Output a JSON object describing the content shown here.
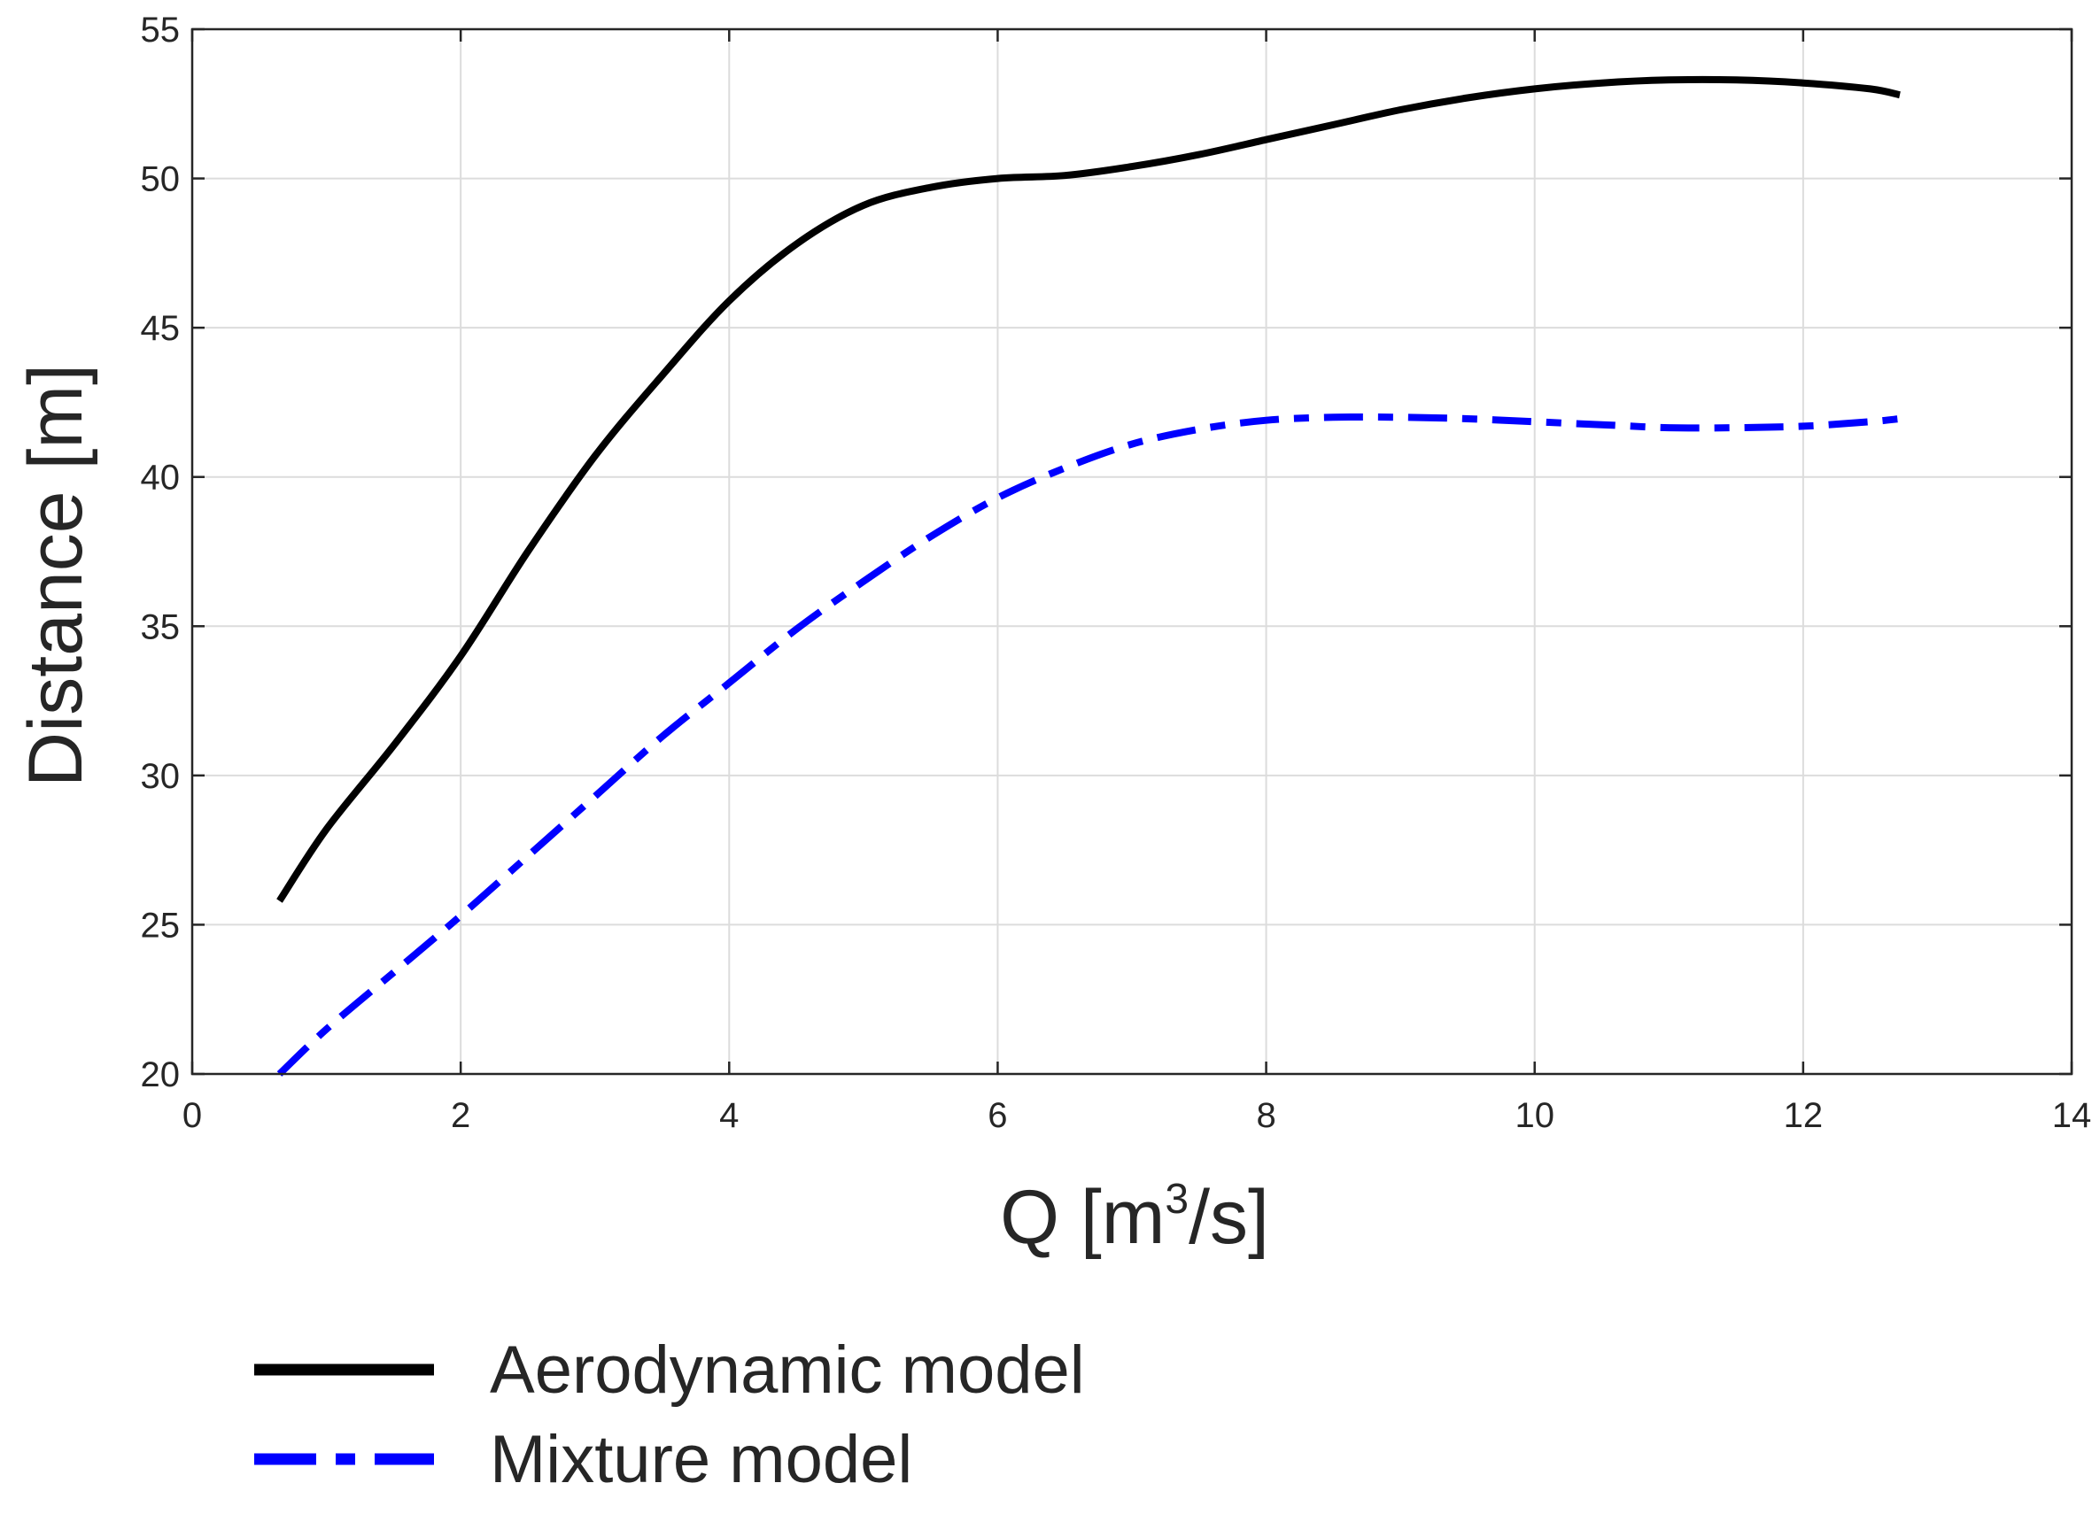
{
  "chart_data": {
    "type": "line",
    "title": "",
    "xlabel": {
      "base": "Q [m",
      "superscript": "3",
      "suffix": "/s]"
    },
    "ylabel": "Distance [m]",
    "xlim": [
      0,
      14
    ],
    "ylim": [
      20,
      55
    ],
    "xticks": [
      0,
      2,
      4,
      6,
      8,
      10,
      12,
      14
    ],
    "yticks": [
      20,
      25,
      30,
      35,
      40,
      45,
      50,
      55
    ],
    "grid": true,
    "legend_position": "bottom-left, below plot",
    "series": [
      {
        "name": "Aerodynamic model",
        "color": "#000000",
        "style": "solid",
        "x": [
          0.65,
          1.0,
          1.5,
          2.0,
          2.5,
          3.0,
          3.5,
          4.0,
          4.5,
          5.0,
          5.5,
          6.0,
          6.5,
          7.0,
          7.5,
          8.0,
          8.5,
          9.0,
          9.5,
          10.0,
          10.5,
          11.0,
          11.5,
          12.0,
          12.5,
          12.72
        ],
        "y": [
          25.8,
          28.2,
          31.0,
          34.0,
          37.5,
          40.7,
          43.4,
          45.9,
          47.8,
          49.1,
          49.7,
          50.0,
          50.1,
          50.4,
          50.8,
          51.3,
          51.8,
          52.3,
          52.7,
          53.0,
          53.2,
          53.3,
          53.3,
          53.2,
          53.0,
          52.8
        ]
      },
      {
        "name": "Mixture model",
        "color": "#0000ff",
        "style": "dashdot",
        "x": [
          0.65,
          1.0,
          1.5,
          2.0,
          2.5,
          3.0,
          3.5,
          4.0,
          4.5,
          5.0,
          5.5,
          6.0,
          6.5,
          7.0,
          7.5,
          8.0,
          8.5,
          9.0,
          9.5,
          10.0,
          10.5,
          11.0,
          11.5,
          12.0,
          12.5,
          12.72
        ],
        "y": [
          20.0,
          21.5,
          23.4,
          25.3,
          27.3,
          29.3,
          31.3,
          33.1,
          34.9,
          36.5,
          38.0,
          39.3,
          40.3,
          41.1,
          41.6,
          41.9,
          42.0,
          42.0,
          41.95,
          41.85,
          41.75,
          41.65,
          41.65,
          41.7,
          41.85,
          41.95
        ]
      }
    ]
  }
}
